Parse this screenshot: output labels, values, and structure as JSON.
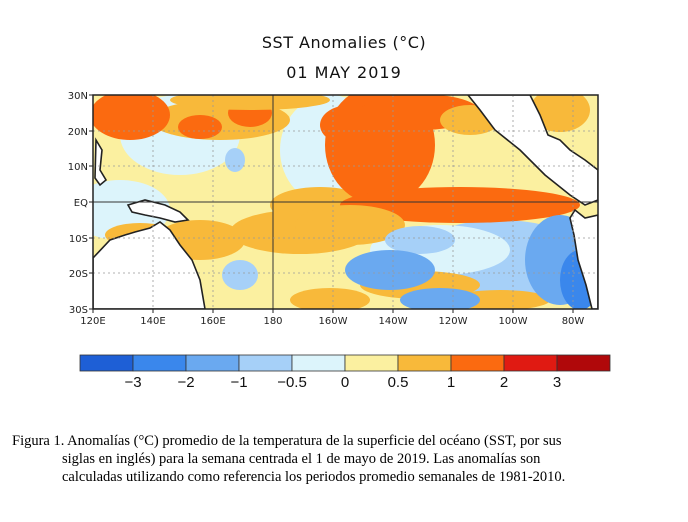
{
  "chart_data": {
    "type": "heatmap",
    "title": "SST Anomalies (°C)",
    "subtitle": "01 MAY 2019",
    "xlabel": "",
    "ylabel": "",
    "x_ticks": [
      "120E",
      "140E",
      "160E",
      "180",
      "160W",
      "140W",
      "120W",
      "100W",
      "80W"
    ],
    "y_ticks": [
      "30N",
      "20N",
      "10N",
      "EQ",
      "10S",
      "20S",
      "30S"
    ],
    "x_range": [
      "120E",
      "70W"
    ],
    "y_range": [
      "30S",
      "30N"
    ],
    "grid": true,
    "colorbar": {
      "units": "°C",
      "bins": [
        {
          "from": null,
          "to": -3,
          "color": "#1e5fd6"
        },
        {
          "from": -3,
          "to": -2,
          "color": "#3a87ec"
        },
        {
          "from": -2,
          "to": -1,
          "color": "#6aa9f0"
        },
        {
          "from": -1,
          "to": -0.5,
          "color": "#a6d0f8"
        },
        {
          "from": -0.5,
          "to": 0,
          "color": "#dcf4fb"
        },
        {
          "from": 0,
          "to": 0.5,
          "color": "#fbf0a0"
        },
        {
          "from": 0.5,
          "to": 1,
          "color": "#f8b93a"
        },
        {
          "from": 1,
          "to": 2,
          "color": "#fb6a10"
        },
        {
          "from": 2,
          "to": 3,
          "color": "#e01a12"
        },
        {
          "from": 3,
          "to": null,
          "color": "#b0080a"
        }
      ],
      "labels": [
        "−3",
        "−2",
        "−1",
        "−0.5",
        "0",
        "0.5",
        "1",
        "2",
        "3"
      ]
    }
  },
  "caption": {
    "line1": "Figura 1. Anomalías (°C) promedio de la temperatura de la superficie del océano (SST, por sus",
    "line2": "siglas en inglés) para la semana centrada el 1 de mayo de 2019. Las anomalías son",
    "line3": "calculadas utilizando como referencia los periodos promedio semanales de 1981-2010."
  }
}
